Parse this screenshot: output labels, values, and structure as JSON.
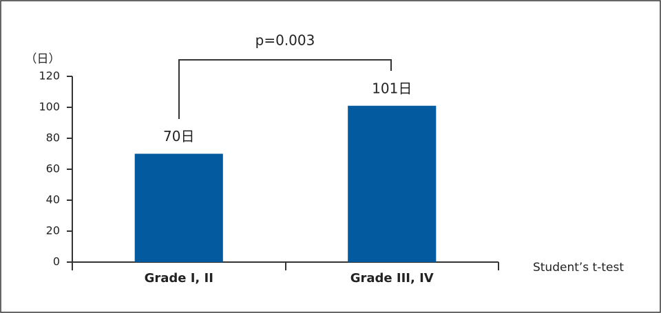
{
  "chart_data": {
    "type": "bar",
    "y_unit_label": "（日）",
    "categories": [
      "Grade Ⅰ, II",
      "Grade III, IV"
    ],
    "values": [
      70,
      101
    ],
    "value_labels": [
      "70日",
      "101日"
    ],
    "color": "#035a9e",
    "ylim": [
      0,
      120
    ],
    "yticks": [
      0,
      20,
      40,
      60,
      80,
      100,
      120
    ],
    "annotation": "p=0.003",
    "footnote": "Student’s t-test"
  }
}
